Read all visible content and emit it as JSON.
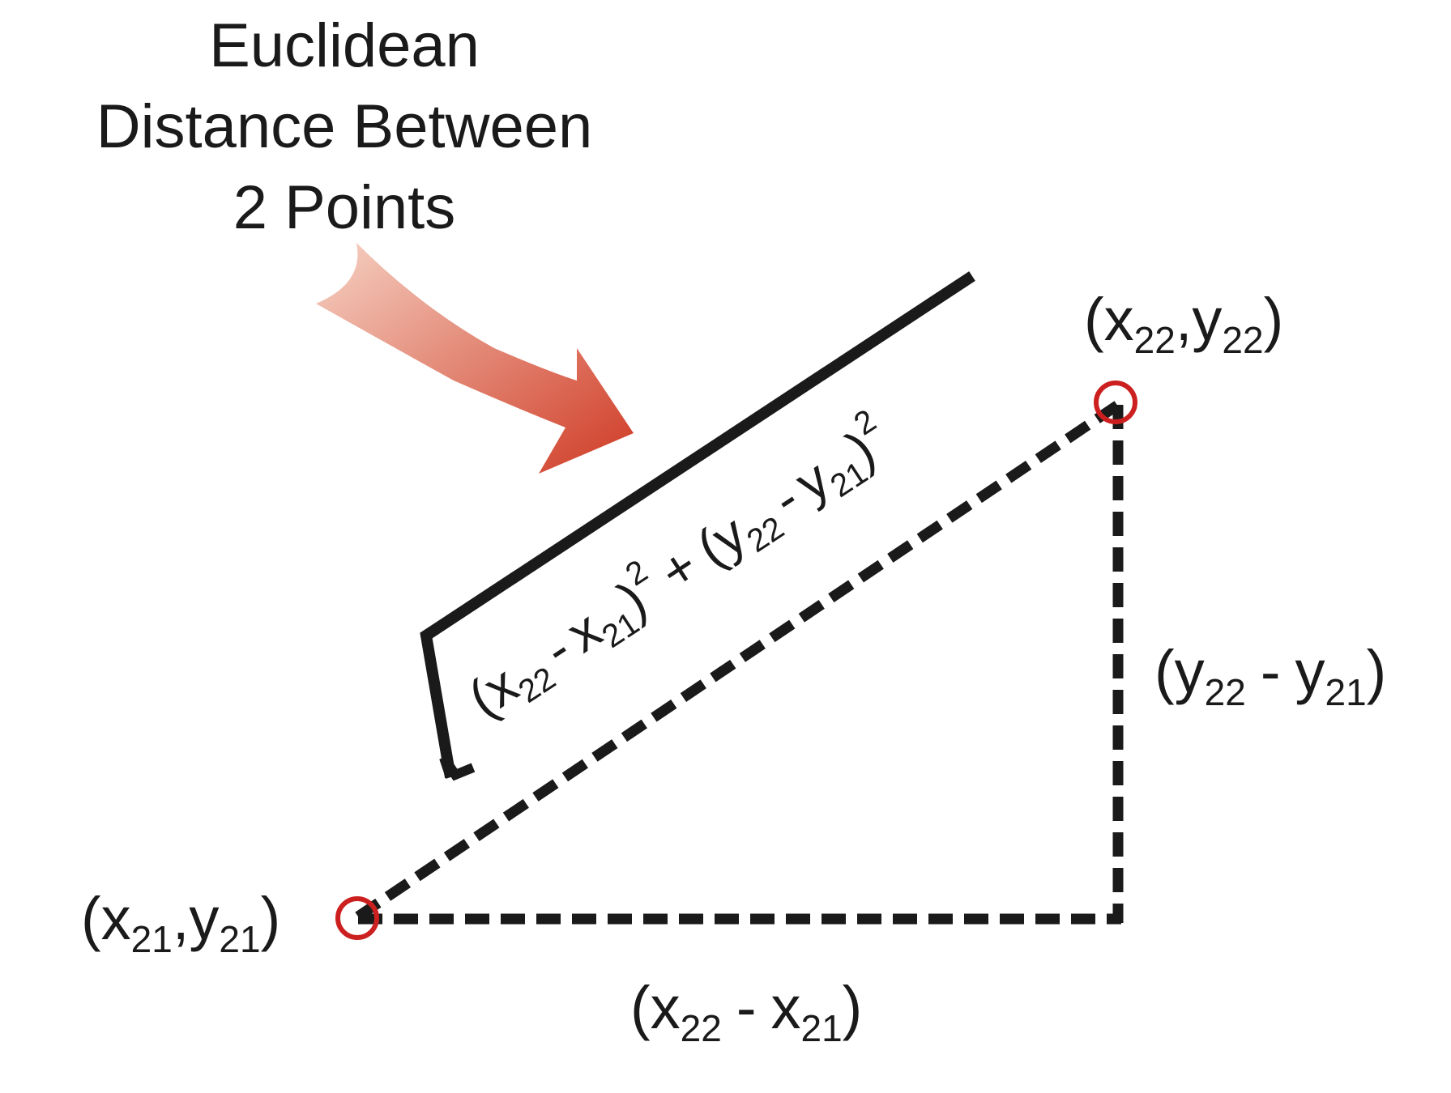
{
  "title": {
    "line1": "Euclidean",
    "line2": "Distance Between",
    "line3": "2 Points"
  },
  "point_a": {
    "var_x": "x",
    "var_y": "y",
    "sub": "21"
  },
  "point_b": {
    "var_x": "x",
    "var_y": "y",
    "sub": "22"
  },
  "delta_x": {
    "var": "x",
    "sub_a": "22",
    "sub_b": "21",
    "minus": "-"
  },
  "delta_y": {
    "var": "y",
    "sub_a": "22",
    "sub_b": "21",
    "minus": "-"
  },
  "formula": {
    "x_var": "x",
    "y_var": "y",
    "sub_a": "22",
    "sub_b": "21",
    "minus": "-",
    "plus": "+",
    "exponent": "2"
  },
  "colors": {
    "ink": "#1a1a1a",
    "point_marker": "#cc1f1f",
    "arrow_start": "#f6d2c4",
    "arrow_end": "#cf3a24"
  },
  "icons": {
    "arrow": "curved-arrow-icon",
    "point": "circle-marker-icon"
  }
}
